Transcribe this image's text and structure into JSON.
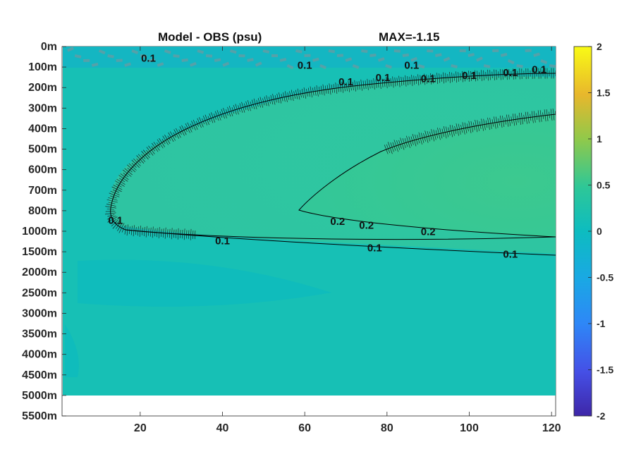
{
  "chart_data": {
    "type": "heatmap",
    "title": "Model - OBS (psu)",
    "subtitle": "MAX=-1.15",
    "xlabel": "",
    "ylabel": "",
    "xlim": [
      1,
      121
    ],
    "x_ticks": [
      20,
      40,
      60,
      80,
      100,
      120
    ],
    "y_tick_labels": [
      "0m",
      "100m",
      "200m",
      "300m",
      "400m",
      "500m",
      "600m",
      "700m",
      "800m",
      "1000m",
      "1500m",
      "2000m",
      "2500m",
      "3000m",
      "3500m",
      "4000m",
      "4500m",
      "5000m",
      "5500m"
    ],
    "data_max_depth_label": "5000m",
    "colorbar": {
      "colormap": "parula",
      "clim": [
        -2,
        2
      ],
      "ticks": [
        2,
        1.5,
        1,
        0.5,
        0,
        -0.5,
        -1,
        -1.5,
        -2
      ],
      "tick_labels": [
        "2",
        "1.5",
        "1",
        "0.5",
        "0",
        "-0.5",
        "-1",
        "-1.5",
        "-2"
      ]
    },
    "contour_labels": [
      {
        "text": "0.1",
        "x": 22,
        "y_level": 0.6
      },
      {
        "text": "0.1",
        "x": 60,
        "y_level": 0.95
      },
      {
        "text": "0.1",
        "x": 86,
        "y_level": 0.95
      },
      {
        "text": "0.1",
        "x": 70,
        "y_level": 1.75
      },
      {
        "text": "0.1",
        "x": 79,
        "y_level": 1.55
      },
      {
        "text": "0.1",
        "x": 90,
        "y_level": 1.6
      },
      {
        "text": "0.1",
        "x": 100,
        "y_level": 1.45
      },
      {
        "text": "0.1",
        "x": 110,
        "y_level": 1.3
      },
      {
        "text": "0.1",
        "x": 117,
        "y_level": 1.15
      },
      {
        "text": "0.1",
        "x": 14,
        "y_level": 8.5
      },
      {
        "text": "0.1",
        "x": 40,
        "y_level": 9.5
      },
      {
        "text": "0.1",
        "x": 77,
        "y_level": 9.85
      },
      {
        "text": "0.1",
        "x": 110,
        "y_level": 10.15
      },
      {
        "text": "0.2",
        "x": 68,
        "y_level": 8.55
      },
      {
        "text": "0.2",
        "x": 75,
        "y_level": 8.75
      },
      {
        "text": "0.2",
        "x": 90,
        "y_level": 9.05
      }
    ]
  }
}
